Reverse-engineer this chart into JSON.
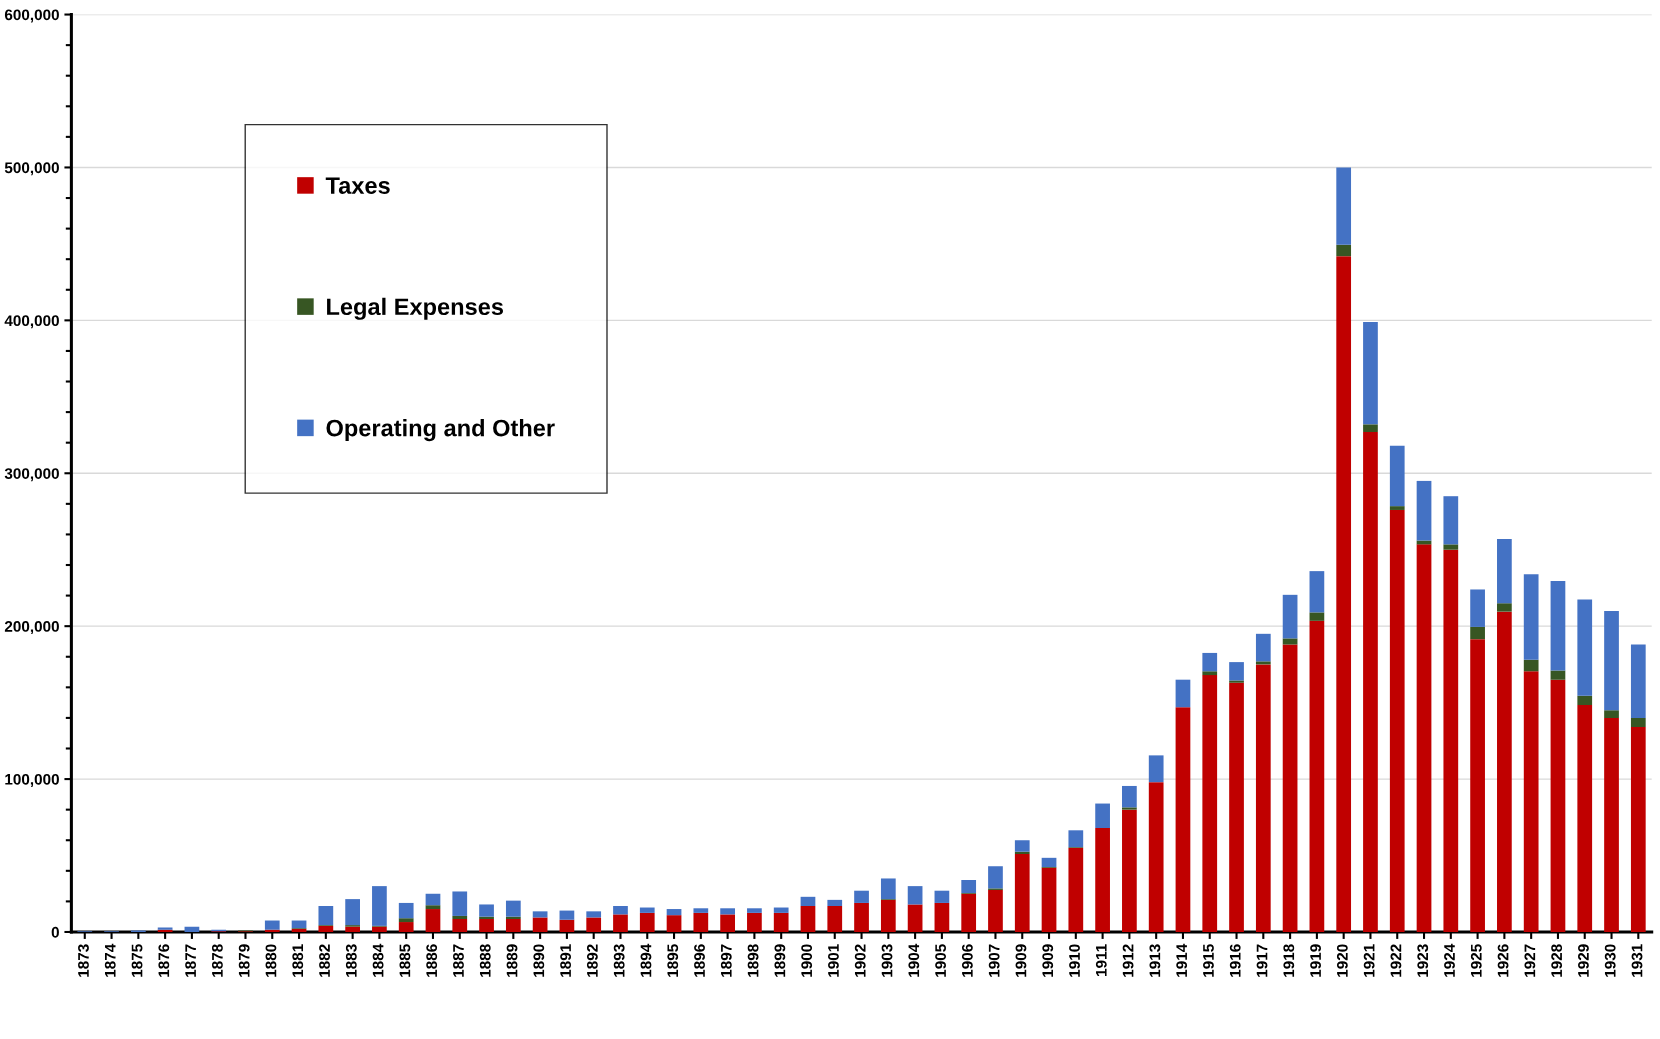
{
  "chart_data": {
    "type": "bar",
    "stacked": true,
    "categories": [
      "1873",
      "1874",
      "1875",
      "1876",
      "1877",
      "1878",
      "1879",
      "1880",
      "1881",
      "1882",
      "1883",
      "1884",
      "1885",
      "1886",
      "1887",
      "1888",
      "1889",
      "1890",
      "1891",
      "1892",
      "1893",
      "1894",
      "1895",
      "1896",
      "1897",
      "1898",
      "1899",
      "1900",
      "1901",
      "1902",
      "1903",
      "1904",
      "1905",
      "1906",
      "1907",
      "1909",
      "1909",
      "1910",
      "1911",
      "1912",
      "1913",
      "1914",
      "1915",
      "1916",
      "1917",
      "1918",
      "1919",
      "1920",
      "1921",
      "1922",
      "1923",
      "1924",
      "1925",
      "1926",
      "1927",
      "1928",
      "1929",
      "1930",
      "1931"
    ],
    "series": [
      {
        "name": "Taxes",
        "color": "#c00000",
        "values": [
          0,
          0,
          0,
          1500,
          0,
          500,
          500,
          1500,
          2000,
          4000,
          3500,
          3500,
          6500,
          15000,
          8500,
          8500,
          8500,
          9500,
          8000,
          9500,
          11500,
          12500,
          11000,
          12500,
          11500,
          12500,
          12500,
          17000,
          17000,
          19000,
          21000,
          18000,
          19000,
          25000,
          27500,
          51000,
          42000,
          55000,
          68000,
          80000,
          98000,
          147000,
          168000,
          163000,
          175000,
          188000,
          203500,
          442000,
          327000,
          276000,
          253500,
          250000,
          191500,
          209500,
          170500,
          165000,
          148500,
          140000,
          134000
        ]
      },
      {
        "name": "Legal Expenses",
        "color": "#375623",
        "values": [
          0,
          0,
          0,
          0,
          0,
          0,
          500,
          0,
          500,
          500,
          1000,
          500,
          2500,
          2500,
          2000,
          1500,
          1500,
          0,
          0,
          0,
          0,
          0,
          0,
          0,
          0,
          0,
          0,
          0,
          0,
          0,
          500,
          0,
          0,
          500,
          1000,
          1500,
          500,
          500,
          0,
          1500,
          null,
          0,
          2500,
          1500,
          2000,
          4000,
          5500,
          7500,
          5000,
          2500,
          2500,
          3500,
          8000,
          5500,
          7500,
          6000,
          6000,
          5000,
          6000
        ]
      },
      {
        "name": "Operating and Other",
        "color": "#4472c4",
        "values": [
          500,
          500,
          1000,
          1500,
          3500,
          1000,
          null,
          6000,
          5000,
          12500,
          17000,
          26000,
          10000,
          7500,
          16000,
          8000,
          10500,
          4000,
          6000,
          4000,
          5500,
          3500,
          4000,
          3000,
          4000,
          3000,
          3500,
          6000,
          4000,
          8000,
          13500,
          12000,
          8000,
          8500,
          14500,
          7500,
          6000,
          11000,
          16000,
          14000,
          17500,
          18000,
          12000,
          12000,
          18000,
          28500,
          27000,
          50500,
          67000,
          39500,
          39000,
          31500,
          24500,
          42000,
          56000,
          58500,
          63000,
          65000,
          48000
        ]
      }
    ],
    "ylim": [
      0,
      600000
    ],
    "yticks": [
      {
        "value": 0,
        "label": "0"
      },
      {
        "value": 100000,
        "label": "100,000"
      },
      {
        "value": 200000,
        "label": "200,000"
      },
      {
        "value": 300000,
        "label": "300,000"
      },
      {
        "value": 400000,
        "label": "400,000"
      },
      {
        "value": 500000,
        "label": "500,000"
      },
      {
        "value": 600000,
        "label": "600,000"
      }
    ],
    "grid": "y",
    "legend": "top left"
  }
}
